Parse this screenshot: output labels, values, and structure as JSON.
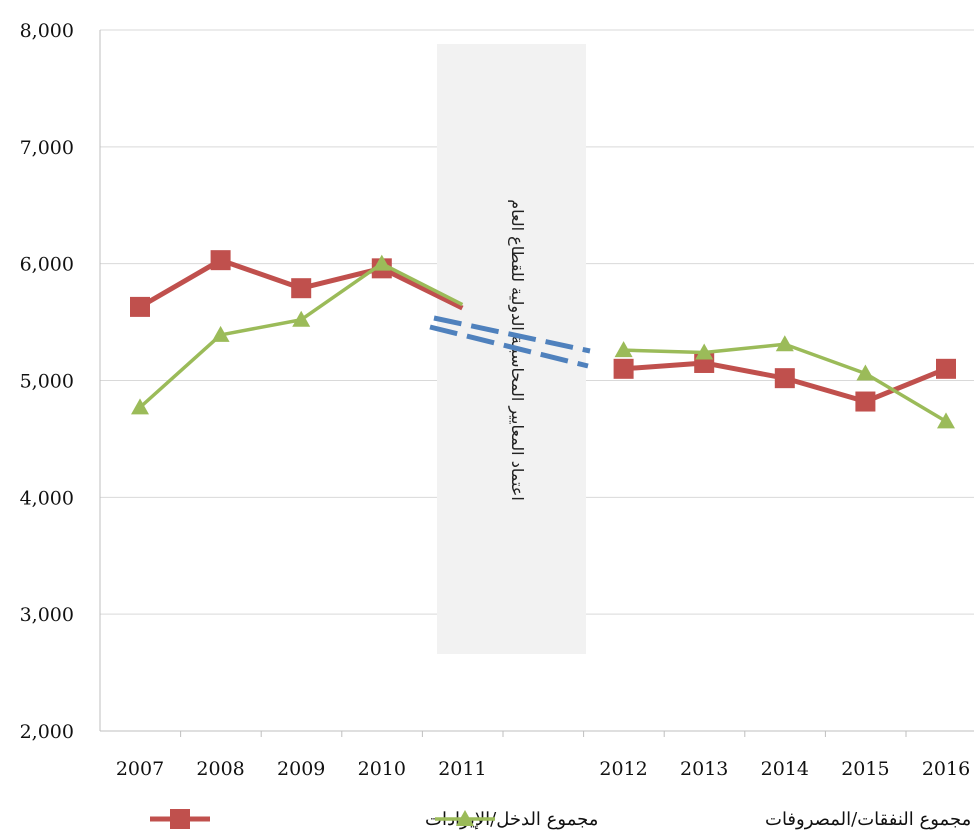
{
  "chart_data": {
    "type": "line",
    "categories": [
      "2007",
      "2008",
      "2009",
      "2010",
      "2011",
      "",
      "2012",
      "2013",
      "2014",
      "2015",
      "2016"
    ],
    "y_ticks": [
      "2,000",
      "3,000",
      "4,000",
      "5,000",
      "6,000",
      "7,000",
      "8,000"
    ],
    "ylim": [
      2000,
      8000
    ],
    "grid": "horizontal",
    "legend_position": "bottom",
    "series": [
      {
        "name": "مجموع الدخل/الإيرادات",
        "color": "#C0504D",
        "marker": "square",
        "values": [
          5630,
          6030,
          5790,
          5960,
          5620,
          null,
          5100,
          5150,
          5020,
          4820,
          5100
        ]
      },
      {
        "name": "مجموع النفقات/المصروفات",
        "color": "#9BBB59",
        "marker": "triangle",
        "values": [
          4770,
          5390,
          5520,
          6000,
          5650,
          null,
          5260,
          5240,
          5310,
          5060,
          4650
        ]
      }
    ],
    "annotation": {
      "text": "اعتماد المعايير المحاسبية الدولية للقطاع العام",
      "shade_color": "#F2F2F2",
      "arrow_color": "#4F81BD"
    }
  }
}
